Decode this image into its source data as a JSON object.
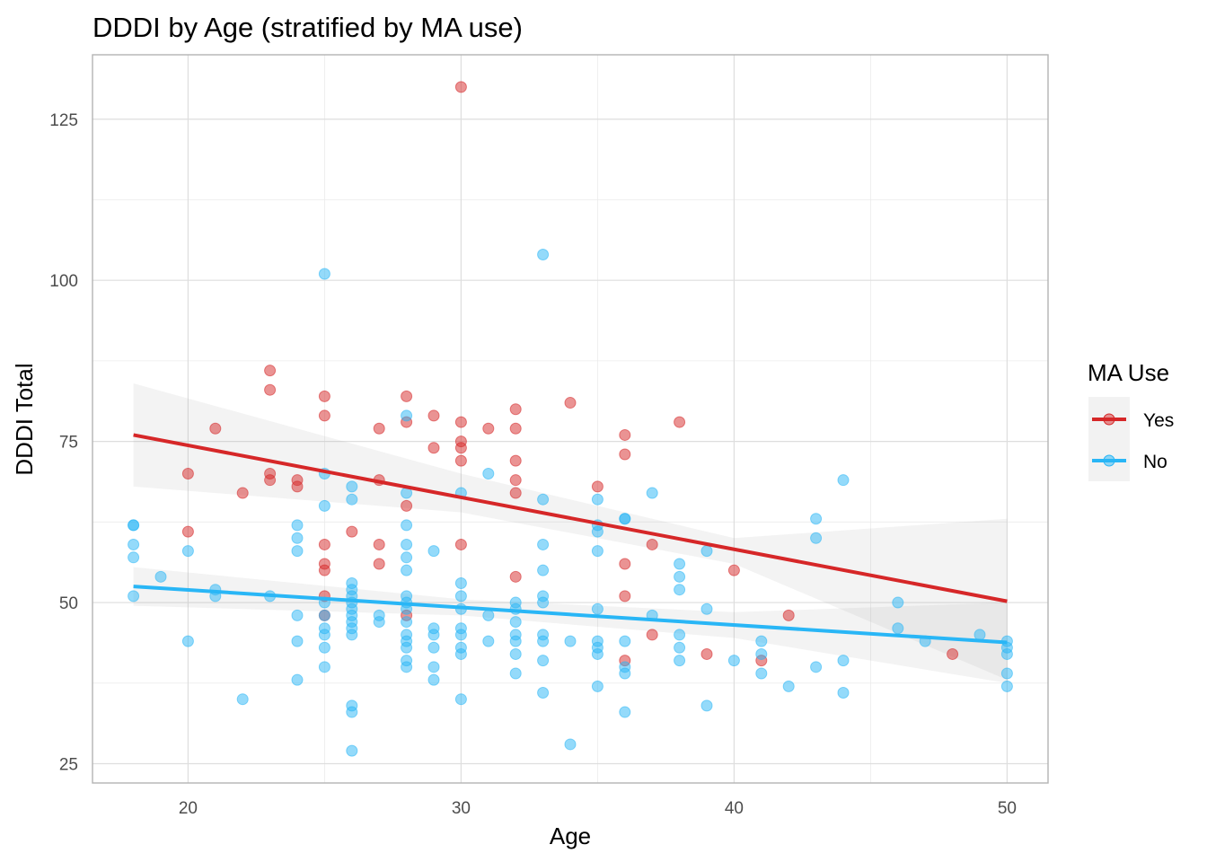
{
  "chart_data": {
    "type": "scatter",
    "title": "DDDI by Age (stratified by MA use)",
    "xlabel": "Age",
    "ylabel": "DDDI Total",
    "xlim": [
      16.5,
      51.5
    ],
    "ylim": [
      22,
      135
    ],
    "x_ticks": [
      20,
      30,
      40,
      50
    ],
    "y_ticks": [
      25,
      50,
      75,
      100,
      125
    ],
    "grid": true,
    "legend": {
      "title": "MA Use",
      "position": "right"
    },
    "series": [
      {
        "name": "Yes",
        "color": "#d62728",
        "trend": {
          "x": [
            18,
            50
          ],
          "y": [
            76,
            50.2
          ]
        },
        "band": {
          "x": [
            18,
            30,
            40,
            50
          ],
          "upper": [
            84,
            70,
            60,
            63
          ],
          "lower": [
            68,
            64,
            56,
            38
          ]
        },
        "points": [
          [
            20,
            70
          ],
          [
            20,
            61
          ],
          [
            21,
            77
          ],
          [
            22,
            67
          ],
          [
            23,
            86
          ],
          [
            23,
            83
          ],
          [
            23,
            70
          ],
          [
            23,
            69
          ],
          [
            24,
            69
          ],
          [
            24,
            68
          ],
          [
            25,
            82
          ],
          [
            25,
            79
          ],
          [
            25,
            59
          ],
          [
            25,
            56
          ],
          [
            25,
            55
          ],
          [
            25,
            51
          ],
          [
            25,
            48
          ],
          [
            26,
            61
          ],
          [
            27,
            77
          ],
          [
            27,
            69
          ],
          [
            27,
            59
          ],
          [
            27,
            56
          ],
          [
            28,
            82
          ],
          [
            28,
            78
          ],
          [
            28,
            65
          ],
          [
            28,
            48
          ],
          [
            29,
            79
          ],
          [
            29,
            74
          ],
          [
            30,
            130
          ],
          [
            30,
            78
          ],
          [
            30,
            75
          ],
          [
            30,
            74
          ],
          [
            30,
            72
          ],
          [
            30,
            59
          ],
          [
            31,
            77
          ],
          [
            32,
            80
          ],
          [
            32,
            77
          ],
          [
            32,
            72
          ],
          [
            32,
            69
          ],
          [
            32,
            67
          ],
          [
            32,
            54
          ],
          [
            34,
            81
          ],
          [
            35,
            68
          ],
          [
            36,
            76
          ],
          [
            36,
            73
          ],
          [
            36,
            56
          ],
          [
            36,
            51
          ],
          [
            36,
            41
          ],
          [
            37,
            59
          ],
          [
            37,
            45
          ],
          [
            38,
            78
          ],
          [
            39,
            42
          ],
          [
            40,
            55
          ],
          [
            41,
            41
          ],
          [
            42,
            48
          ],
          [
            48,
            42
          ]
        ]
      },
      {
        "name": "No",
        "color": "#29b6f6",
        "trend": {
          "x": [
            18,
            50
          ],
          "y": [
            52.5,
            43.8
          ]
        },
        "band": {
          "x": [
            18,
            30,
            40,
            50
          ],
          "upper": [
            55.5,
            50.5,
            48.5,
            50
          ],
          "lower": [
            49.5,
            48,
            44.5,
            37.5
          ]
        },
        "points": [
          [
            18,
            62
          ],
          [
            18,
            62
          ],
          [
            18,
            59
          ],
          [
            18,
            57
          ],
          [
            18,
            51
          ],
          [
            19,
            54
          ],
          [
            20,
            58
          ],
          [
            20,
            44
          ],
          [
            21,
            52
          ],
          [
            21,
            51
          ],
          [
            22,
            35
          ],
          [
            23,
            51
          ],
          [
            24,
            62
          ],
          [
            24,
            60
          ],
          [
            24,
            58
          ],
          [
            24,
            48
          ],
          [
            24,
            44
          ],
          [
            24,
            38
          ],
          [
            25,
            101
          ],
          [
            25,
            70
          ],
          [
            25,
            65
          ],
          [
            25,
            50
          ],
          [
            25,
            48
          ],
          [
            25,
            46
          ],
          [
            25,
            45
          ],
          [
            25,
            43
          ],
          [
            25,
            40
          ],
          [
            26,
            68
          ],
          [
            26,
            66
          ],
          [
            26,
            53
          ],
          [
            26,
            52
          ],
          [
            26,
            51
          ],
          [
            26,
            50
          ],
          [
            26,
            49
          ],
          [
            26,
            48
          ],
          [
            26,
            47
          ],
          [
            26,
            46
          ],
          [
            26,
            45
          ],
          [
            26,
            34
          ],
          [
            26,
            33
          ],
          [
            26,
            27
          ],
          [
            27,
            48
          ],
          [
            27,
            47
          ],
          [
            28,
            79
          ],
          [
            28,
            67
          ],
          [
            28,
            62
          ],
          [
            28,
            59
          ],
          [
            28,
            57
          ],
          [
            28,
            55
          ],
          [
            28,
            51
          ],
          [
            28,
            50
          ],
          [
            28,
            49
          ],
          [
            28,
            47
          ],
          [
            28,
            45
          ],
          [
            28,
            44
          ],
          [
            28,
            43
          ],
          [
            28,
            41
          ],
          [
            28,
            40
          ],
          [
            29,
            58
          ],
          [
            29,
            46
          ],
          [
            29,
            45
          ],
          [
            29,
            43
          ],
          [
            29,
            40
          ],
          [
            29,
            38
          ],
          [
            30,
            67
          ],
          [
            30,
            53
          ],
          [
            30,
            51
          ],
          [
            30,
            49
          ],
          [
            30,
            46
          ],
          [
            30,
            45
          ],
          [
            30,
            43
          ],
          [
            30,
            42
          ],
          [
            30,
            35
          ],
          [
            31,
            70
          ],
          [
            31,
            48
          ],
          [
            31,
            44
          ],
          [
            32,
            50
          ],
          [
            32,
            49
          ],
          [
            32,
            47
          ],
          [
            32,
            45
          ],
          [
            32,
            44
          ],
          [
            32,
            42
          ],
          [
            32,
            39
          ],
          [
            33,
            104
          ],
          [
            33,
            66
          ],
          [
            33,
            59
          ],
          [
            33,
            55
          ],
          [
            33,
            51
          ],
          [
            33,
            50
          ],
          [
            33,
            45
          ],
          [
            33,
            44
          ],
          [
            33,
            41
          ],
          [
            33,
            36
          ],
          [
            34,
            44
          ],
          [
            34,
            28
          ],
          [
            35,
            66
          ],
          [
            35,
            62
          ],
          [
            35,
            61
          ],
          [
            35,
            58
          ],
          [
            35,
            49
          ],
          [
            35,
            44
          ],
          [
            35,
            43
          ],
          [
            35,
            42
          ],
          [
            35,
            37
          ],
          [
            36,
            63
          ],
          [
            36,
            63
          ],
          [
            36,
            44
          ],
          [
            36,
            40
          ],
          [
            36,
            39
          ],
          [
            36,
            33
          ],
          [
            37,
            67
          ],
          [
            37,
            48
          ],
          [
            38,
            56
          ],
          [
            38,
            54
          ],
          [
            38,
            52
          ],
          [
            38,
            45
          ],
          [
            38,
            43
          ],
          [
            38,
            41
          ],
          [
            39,
            58
          ],
          [
            39,
            49
          ],
          [
            39,
            34
          ],
          [
            40,
            41
          ],
          [
            41,
            44
          ],
          [
            41,
            42
          ],
          [
            41,
            39
          ],
          [
            42,
            37
          ],
          [
            43,
            63
          ],
          [
            43,
            60
          ],
          [
            43,
            40
          ],
          [
            44,
            69
          ],
          [
            44,
            41
          ],
          [
            44,
            36
          ],
          [
            46,
            50
          ],
          [
            46,
            46
          ],
          [
            47,
            44
          ],
          [
            49,
            45
          ],
          [
            50,
            44
          ],
          [
            50,
            43
          ],
          [
            50,
            42
          ],
          [
            50,
            39
          ],
          [
            50,
            37
          ]
        ]
      }
    ]
  }
}
